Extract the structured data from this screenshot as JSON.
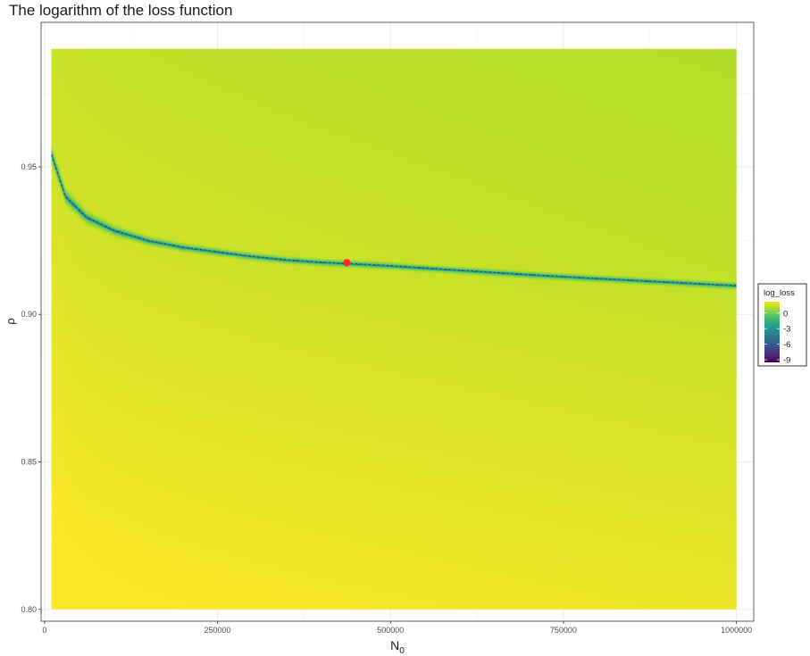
{
  "chart_data": {
    "type": "heatmap",
    "title": "The logarithm of the loss function",
    "xlabel": "N",
    "xlabel_subscript": "0",
    "ylabel": "ρ",
    "xlim": [
      -5000,
      1025000
    ],
    "ylim": [
      0.796,
      0.999
    ],
    "data_extent": {
      "x": [
        10000,
        1000000
      ],
      "y": [
        0.8,
        0.99
      ]
    },
    "x_ticks": [
      0,
      250000,
      500000,
      750000,
      1000000
    ],
    "x_tick_labels": [
      "0",
      "250000",
      "500000",
      "750000",
      "1000000"
    ],
    "y_ticks": [
      0.8,
      0.85,
      0.9,
      0.95
    ],
    "y_tick_labels": [
      "0.80",
      "0.85",
      "0.90",
      "0.95"
    ],
    "grid": true,
    "fill_variable": "log_loss",
    "fill_range": [
      -9.5,
      2.2
    ],
    "colorscale": "viridis",
    "legend": {
      "title": "log_loss",
      "ticks": [
        0,
        -3,
        -6,
        -9
      ],
      "tick_labels": [
        "0",
        "-3",
        "-6",
        "-9"
      ],
      "position": "right"
    },
    "minimum_valley_curve": {
      "x": [
        10000,
        30000,
        60000,
        100000,
        150000,
        200000,
        250000,
        300000,
        350000,
        400000,
        437000,
        500000,
        600000,
        700000,
        800000,
        900000,
        1000000
      ],
      "y": [
        0.954,
        0.94,
        0.933,
        0.9285,
        0.925,
        0.9228,
        0.9212,
        0.9197,
        0.9185,
        0.9177,
        0.9173,
        0.9165,
        0.915,
        0.9135,
        0.9122,
        0.911,
        0.9098
      ]
    },
    "optimum_point": {
      "x": 437000,
      "y": 0.9175,
      "color": "#ff2b2b"
    }
  }
}
